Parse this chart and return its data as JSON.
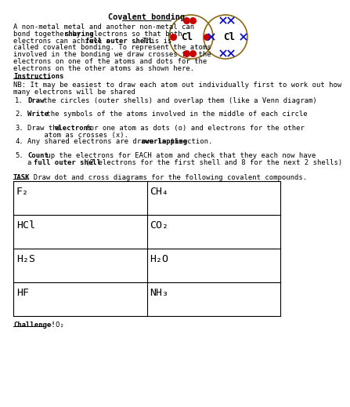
{
  "title": "Covalent bonding",
  "body_lines": [
    "A non-metal metal and another non-metal can",
    "bond together by sharing electrons so that both",
    "electrons can achieve a full outer shell. This is",
    "called covalent bonding. To represent the atoms",
    "involved in the bonding we draw crosses for the",
    "electrons on one of the atoms and dots for the",
    "electrons on the other atoms as shown here."
  ],
  "instructions_title": "Instructions",
  "nb_lines": [
    "NB: It may be easiest to draw each atom out individually first to work out how",
    "many electrons will be shared"
  ],
  "step_lines": [
    [
      [
        "Draw",
        true
      ],
      [
        " the circles (outer shells) and overlap them (like a Venn diagram)",
        false
      ]
    ],
    [
      [
        "Write",
        true
      ],
      [
        " the symbols of the atoms involved in the middle of each circle",
        false
      ]
    ],
    [
      [
        "Draw the ",
        false
      ],
      [
        "electrons",
        true
      ],
      [
        " for one atom as dots (o) and electrons for the other",
        false
      ]
    ],
    [
      [
        "Any shared electrons are drawn in the ",
        false
      ],
      [
        "overlapping",
        true
      ],
      [
        " section.",
        false
      ]
    ],
    [
      [
        "Count",
        true
      ],
      [
        " up the electrons for EACH atom and check that they each now have",
        false
      ]
    ]
  ],
  "step_cont": [
    null,
    null,
    "    atom as crosses (x).",
    null,
    [
      [
        "a ",
        false
      ],
      [
        "full outer shell",
        true
      ],
      [
        " (2 electrons for the first shell and 8 for the next 2 shells)",
        false
      ]
    ]
  ],
  "task_prefix": "TASK",
  "task_rest": ": Draw dot and cross diagrams for the following covalent compounds.",
  "table_cells": [
    [
      "F₂",
      "CH₄"
    ],
    [
      "HCl",
      "CO₂"
    ],
    [
      "H₂S",
      "H₂O"
    ],
    [
      "HF",
      "NH₃"
    ]
  ],
  "challenge_bold": "Challenge!",
  "challenge_rest": " – O₂",
  "bg_color": "#ffffff",
  "dot_color": "#cc0000",
  "cross_color": "#0000cc",
  "circle_color": "#8B6914"
}
